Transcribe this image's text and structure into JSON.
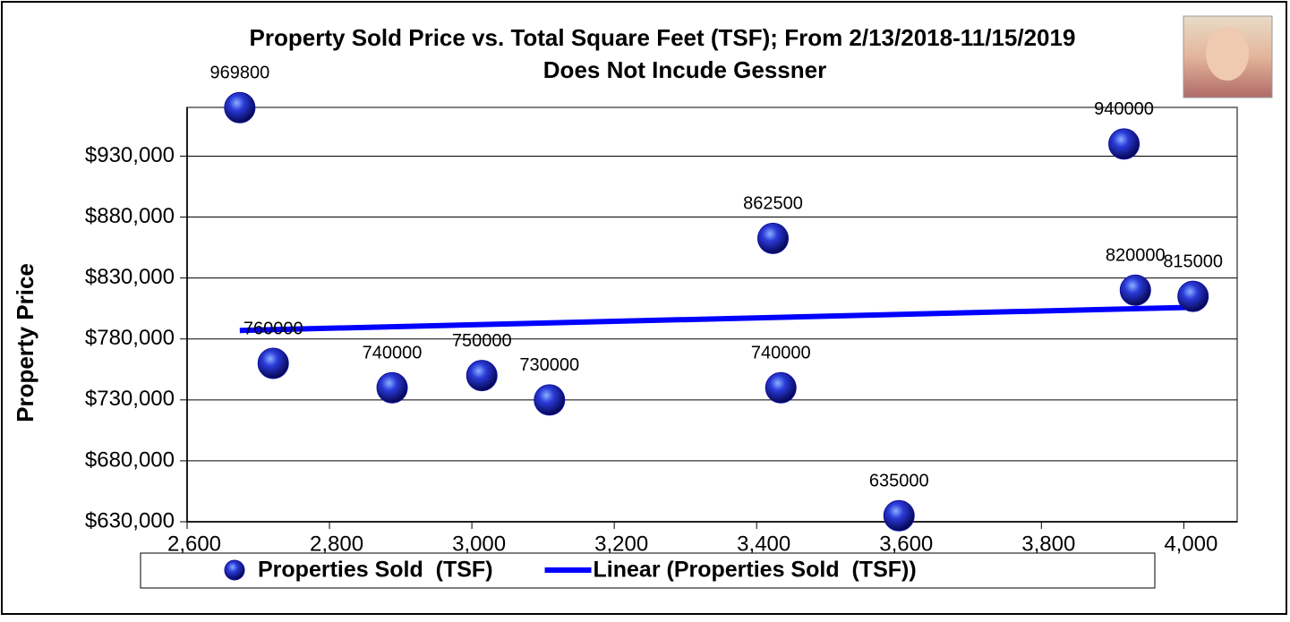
{
  "chart_data": {
    "type": "scatter",
    "title": "Property Sold Price vs. Total Square Feet (TSF); From 2/13/2018-11/15/2019",
    "subtitle": "Does Not Incude Gessner",
    "y_label": "Property Price",
    "xlim": [
      2600,
      4075
    ],
    "xticks": [
      {
        "value": 2600,
        "label": "2,600"
      },
      {
        "value": 2800,
        "label": "2,800"
      },
      {
        "value": 3000,
        "label": "3,000"
      },
      {
        "value": 3200,
        "label": "3,200"
      },
      {
        "value": 3400,
        "label": "3,400"
      },
      {
        "value": 3600,
        "label": "3,600"
      },
      {
        "value": 3800,
        "label": "3,800"
      },
      {
        "value": 4000,
        "label": "4,000"
      }
    ],
    "ylim": [
      630000,
      970000
    ],
    "yticks": [
      {
        "value": 630000,
        "label": "$630,000"
      },
      {
        "value": 680000,
        "label": "$680,000"
      },
      {
        "value": 730000,
        "label": "$730,000"
      },
      {
        "value": 780000,
        "label": "$780,000"
      },
      {
        "value": 830000,
        "label": "$830,000"
      },
      {
        "value": 880000,
        "label": "$880,000"
      },
      {
        "value": 930000,
        "label": "$930,000"
      }
    ],
    "grid": true,
    "series": [
      {
        "name": "Properties Sold  (TSF)",
        "type": "scatter",
        "color": "#1010a0",
        "x": [
          2674,
          2721,
          2888,
          3014,
          3109,
          3423,
          3434,
          3600,
          3916,
          3932,
          4013
        ],
        "values": [
          969800,
          760000,
          740000,
          750000,
          730000,
          862500,
          740000,
          635000,
          940000,
          820000,
          815000
        ]
      },
      {
        "name": "Linear (Properties Sold  (TSF))",
        "type": "line",
        "color": "#0000ff",
        "x": [
          2674,
          4013
        ],
        "values": [
          787000,
          806000
        ]
      }
    ]
  }
}
